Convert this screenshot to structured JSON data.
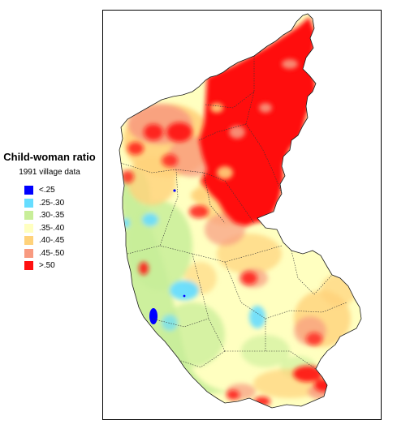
{
  "legend": {
    "title": "Child-woman ratio",
    "subtitle": "1991 village data",
    "items": [
      {
        "label": "<.25",
        "color": "#0000ff"
      },
      {
        "label": ".25-.30",
        "color": "#66ddff"
      },
      {
        "label": ".30-.35",
        "color": "#c8ee99"
      },
      {
        "label": ".35-.40",
        "color": "#ffffc0"
      },
      {
        "label": ".40-.45",
        "color": "#ffd27a"
      },
      {
        "label": ".45-.50",
        "color": "#f89a80"
      },
      {
        "label": ">.50",
        "color": "#ff1010"
      }
    ]
  }
}
